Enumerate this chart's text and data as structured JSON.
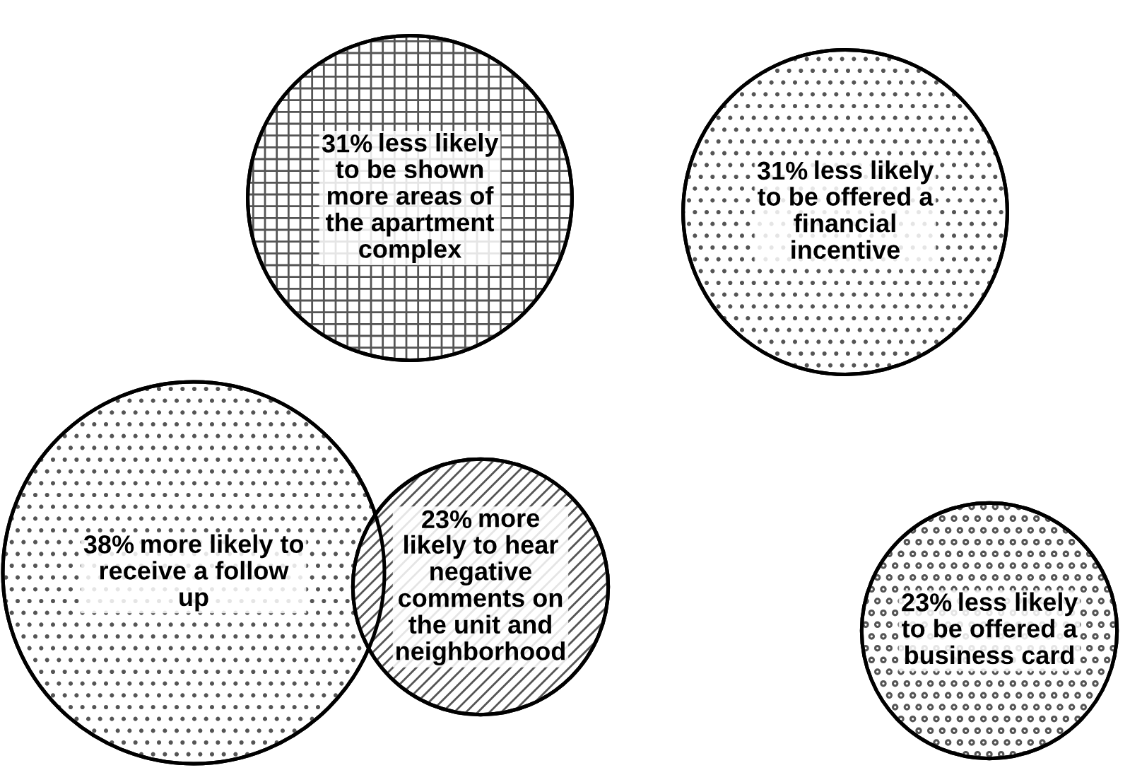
{
  "chart_data": {
    "type": "other",
    "categories": [
      "less likely\nto be shown\nmore areas of\nthe apartment\ncomplex",
      "less likely\nto be offered a\nfinancial\nincentive",
      "more likely to\nreceive a follow\nup",
      "more\nlikely to hear\nnegative\ncomments on\nthe unit and\nneighborhood",
      "less likely\nto be offered a\nbusiness card"
    ],
    "values": [
      31,
      31,
      38,
      23,
      23
    ],
    "value_labels": [
      "31%",
      "31%",
      "38%",
      "23%",
      "23%"
    ]
  }
}
